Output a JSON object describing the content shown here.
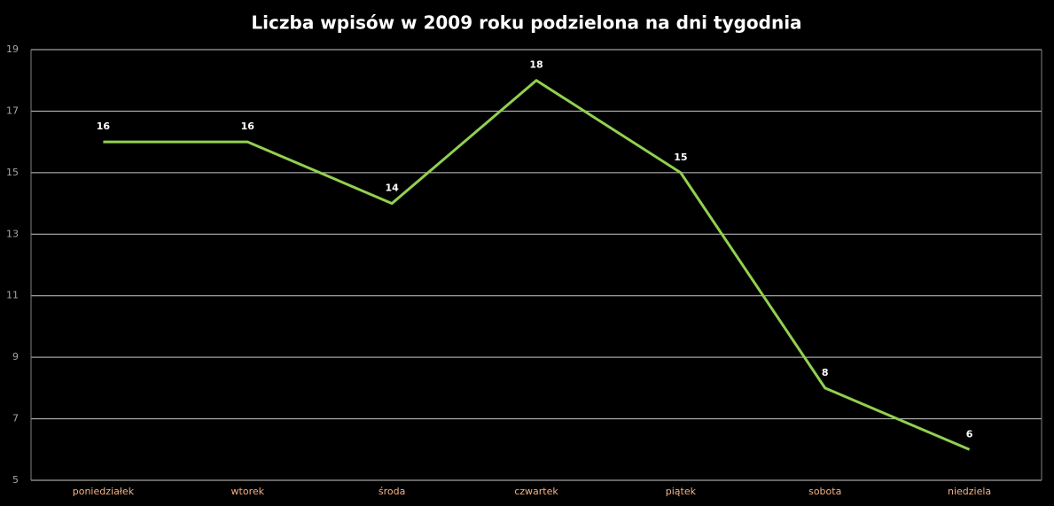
{
  "chart_data": {
    "type": "line",
    "title": "Liczba wpisów w 2009 roku podzielona na dni tygodnia",
    "categories": [
      "poniedziałek",
      "wtorek",
      "środa",
      "czwartek",
      "piątek",
      "sobota",
      "niedziela"
    ],
    "values": [
      16,
      16,
      14,
      18,
      15,
      8,
      6
    ],
    "color": "#92d050",
    "ylim": [
      5,
      19
    ],
    "yticks": [
      5,
      7,
      9,
      11,
      13,
      15,
      17,
      19
    ],
    "grid": true
  }
}
